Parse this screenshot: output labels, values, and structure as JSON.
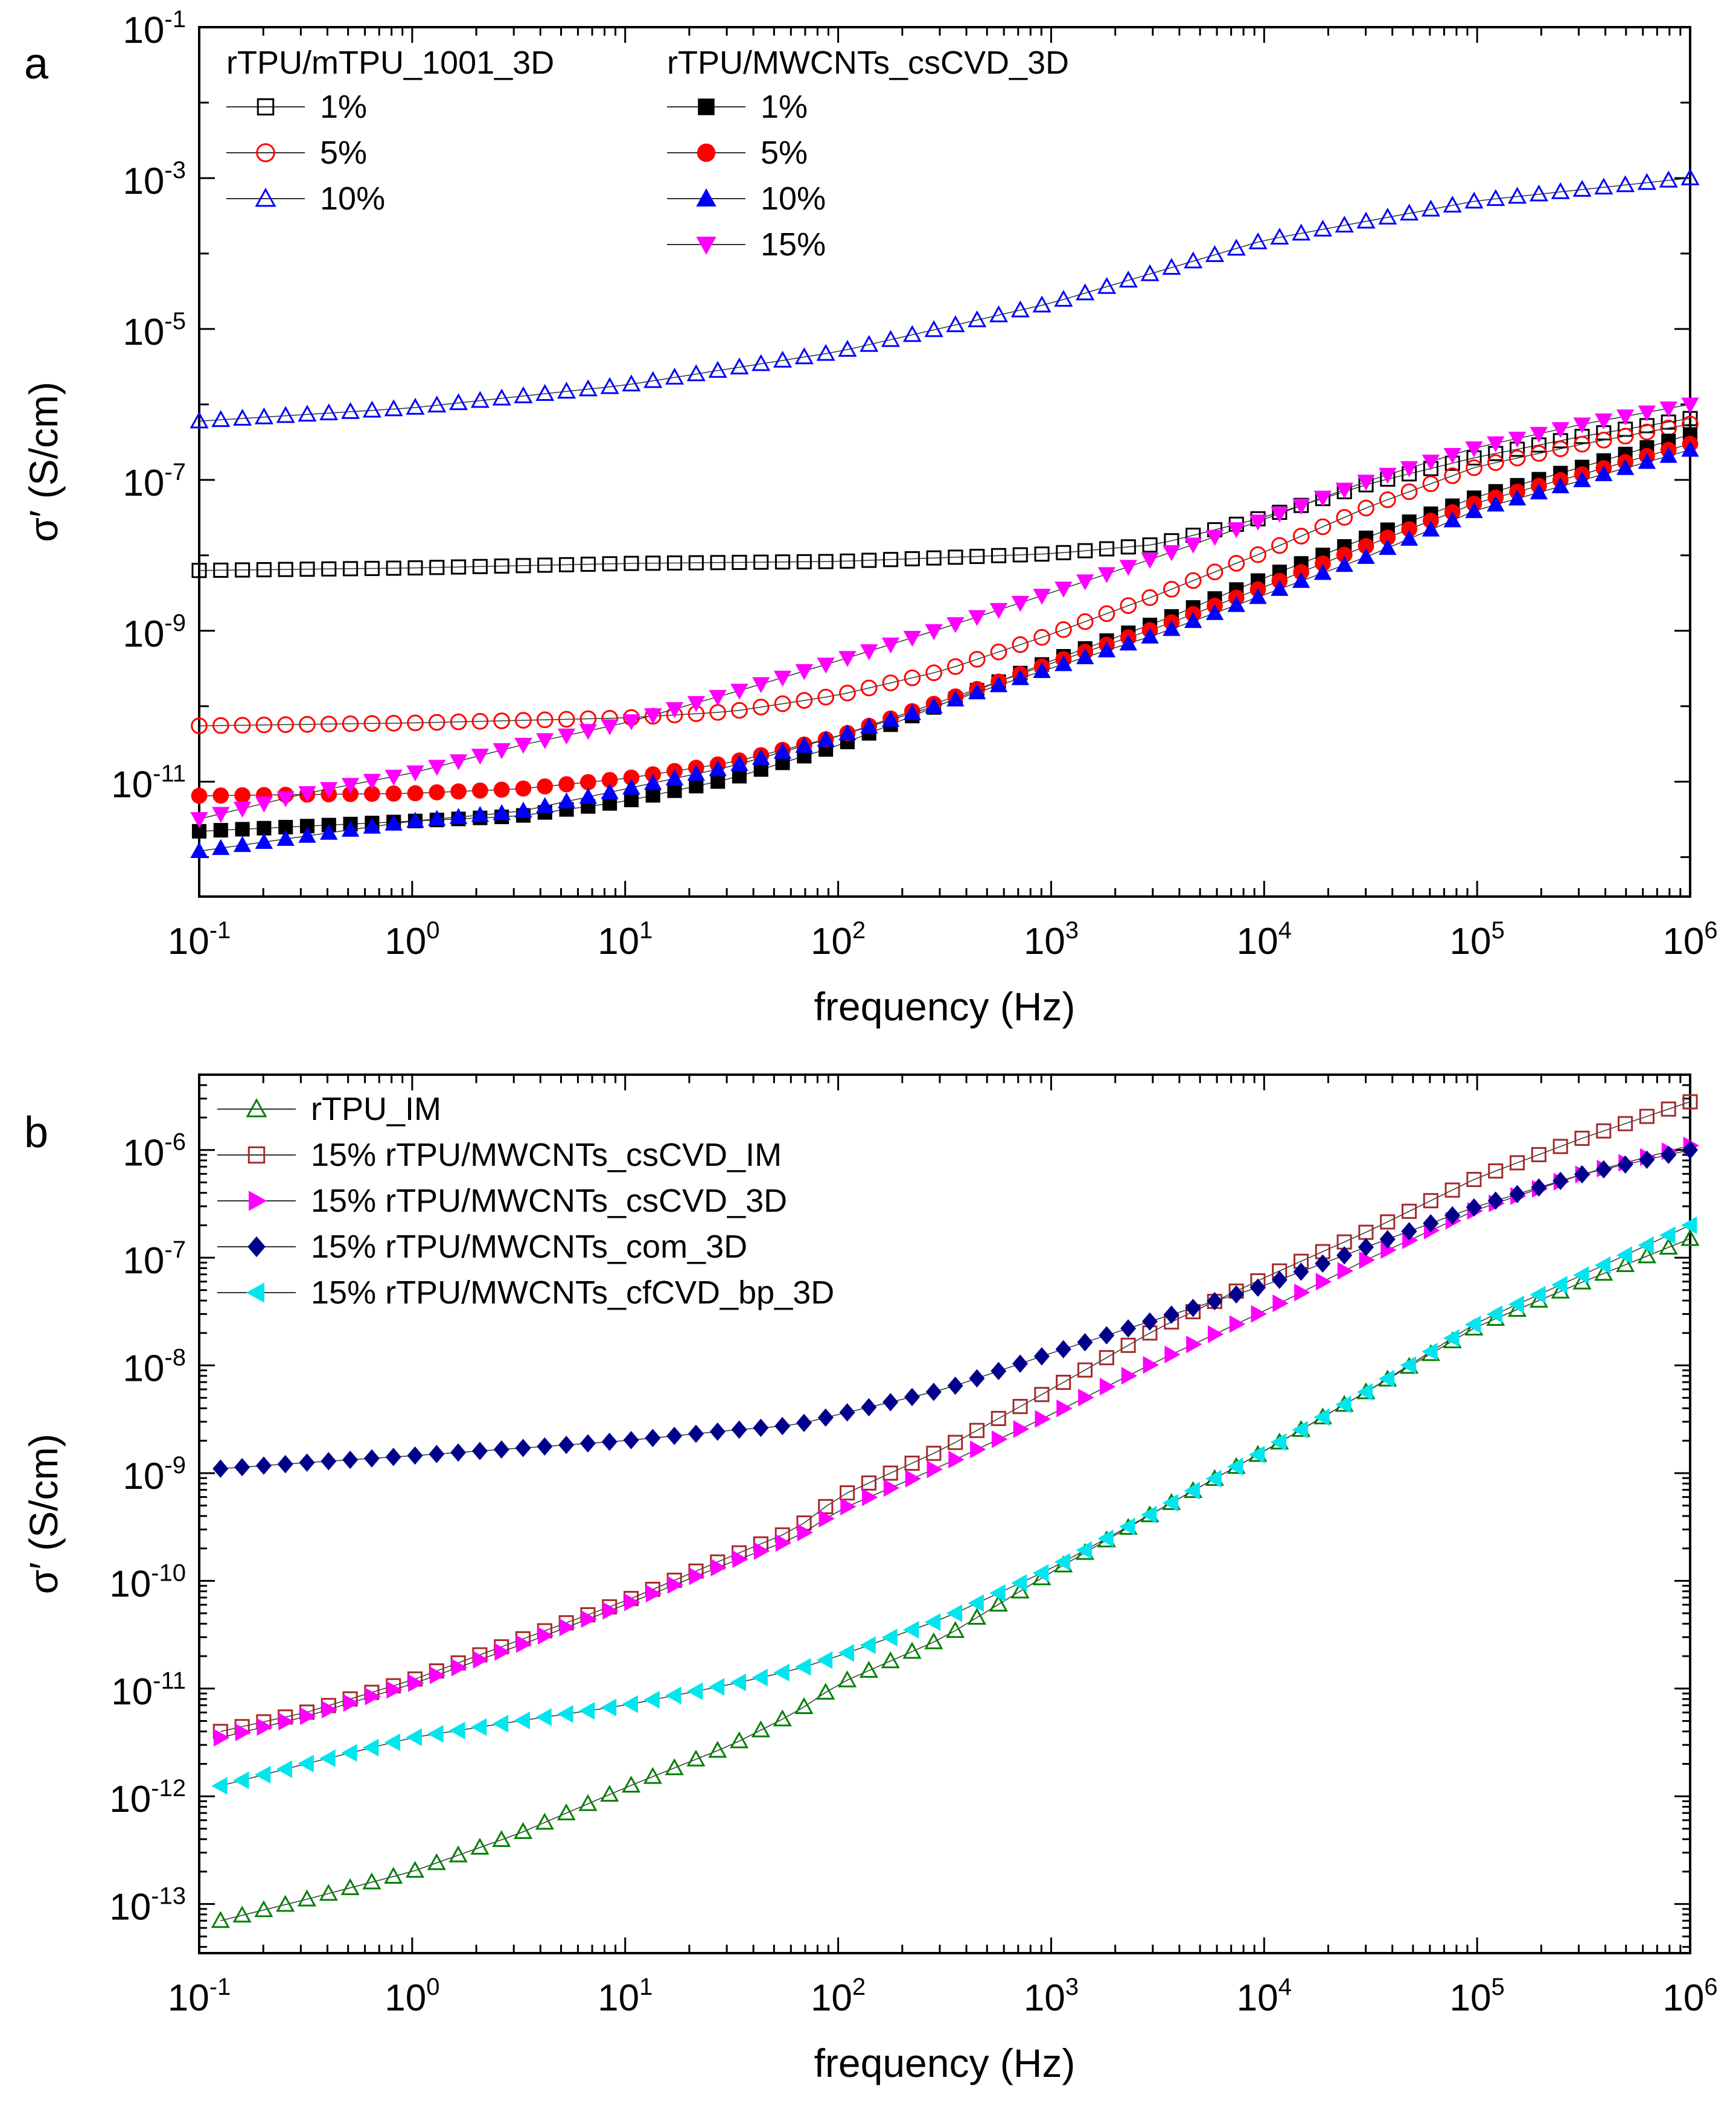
{
  "chart_data": [
    {
      "type": "scatter",
      "panel_label": "a",
      "xlabel": "frequency (Hz)",
      "ylabel": "σ′ (S/cm)",
      "xscale": "log",
      "yscale": "log",
      "xlim": [
        0.1,
        1000000
      ],
      "ylim": [
        3e-13,
        0.1
      ],
      "x_ticks": [
        {
          "base": "10",
          "exp": "-1"
        },
        {
          "base": "10",
          "exp": "0"
        },
        {
          "base": "10",
          "exp": "1"
        },
        {
          "base": "10",
          "exp": "2"
        },
        {
          "base": "10",
          "exp": "3"
        },
        {
          "base": "10",
          "exp": "4"
        },
        {
          "base": "10",
          "exp": "5"
        },
        {
          "base": "10",
          "exp": "6"
        }
      ],
      "y_ticks": [
        {
          "base": "10",
          "exp": "-11"
        },
        {
          "base": "10",
          "exp": "-9"
        },
        {
          "base": "10",
          "exp": "-7"
        },
        {
          "base": "10",
          "exp": "-5"
        },
        {
          "base": "10",
          "exp": "-3"
        },
        {
          "base": "10",
          "exp": "-1"
        }
      ],
      "legend_groups": [
        {
          "title": "rTPU/mTPU_1001_3D",
          "position": "top-left"
        },
        {
          "title": "rTPU/MWCNTs_csCVD_3D",
          "position": "top-center"
        }
      ],
      "series": [
        {
          "name": "1%",
          "group": 0,
          "marker": "square",
          "filled": false,
          "color": "#000000",
          "anchors": [
            [
              -1,
              6.3e-09
            ],
            [
              0,
              6.8e-09
            ],
            [
              1,
              7.8e-09
            ],
            [
              2,
              8.3e-09
            ],
            [
              3,
              1.05e-08
            ],
            [
              3.5,
              1.4e-08
            ],
            [
              4,
              3.2e-08
            ],
            [
              4.5,
              9e-08
            ],
            [
              5,
              2e-07
            ],
            [
              5.5,
              3.8e-07
            ],
            [
              6,
              6.5e-07
            ]
          ]
        },
        {
          "name": "5%",
          "group": 0,
          "marker": "circle",
          "filled": false,
          "color": "#ff0000",
          "anchors": [
            [
              -1,
              5.5e-11
            ],
            [
              0,
              6e-11
            ],
            [
              1,
              7e-11
            ],
            [
              1.5,
              8.5e-11
            ],
            [
              2,
              1.4e-10
            ],
            [
              2.5,
              3e-10
            ],
            [
              3,
              9e-10
            ],
            [
              3.5,
              3e-09
            ],
            [
              4,
              1.1e-08
            ],
            [
              4.5,
              4.5e-08
            ],
            [
              5,
              1.5e-07
            ],
            [
              5.5,
              3e-07
            ],
            [
              6,
              5.5e-07
            ]
          ]
        },
        {
          "name": "10%",
          "group": 0,
          "marker": "triangle-up",
          "filled": false,
          "color": "#0000ff",
          "anchors": [
            [
              -1,
              6e-07
            ],
            [
              0,
              9e-07
            ],
            [
              1,
              1.8e-06
            ],
            [
              2,
              5e-06
            ],
            [
              3,
              2.2e-05
            ],
            [
              4,
              0.00015
            ],
            [
              5,
              0.0005
            ],
            [
              6,
              0.001
            ]
          ]
        },
        {
          "name": "1%",
          "group": 1,
          "marker": "square",
          "filled": true,
          "color": "#000000",
          "anchors": [
            [
              -1,
              2.2e-12
            ],
            [
              0,
              3e-12
            ],
            [
              0.5,
              3.5e-12
            ],
            [
              1,
              5.5e-12
            ],
            [
              1.5,
              1.1e-11
            ],
            [
              2,
              3e-11
            ],
            [
              2.5,
              1.1e-10
            ],
            [
              3,
              4e-10
            ],
            [
              3.5,
              1.3e-09
            ],
            [
              4,
              5e-09
            ],
            [
              4.5,
              1.8e-08
            ],
            [
              5,
              6e-08
            ],
            [
              5.5,
              1.5e-07
            ],
            [
              6,
              4e-07
            ]
          ]
        },
        {
          "name": "5%",
          "group": 1,
          "marker": "circle",
          "filled": true,
          "color": "#ff0000",
          "anchors": [
            [
              -1,
              6.5e-12
            ],
            [
              0,
              7e-12
            ],
            [
              0.5,
              8e-12
            ],
            [
              1,
              1.1e-11
            ],
            [
              1.5,
              1.8e-11
            ],
            [
              2,
              4e-11
            ],
            [
              2.5,
              1.2e-10
            ],
            [
              3,
              3.7e-10
            ],
            [
              3.5,
              1.1e-09
            ],
            [
              4,
              3.8e-09
            ],
            [
              4.5,
              1.4e-08
            ],
            [
              5,
              5e-08
            ],
            [
              5.5,
              1.2e-07
            ],
            [
              6,
              3e-07
            ]
          ]
        },
        {
          "name": "10%",
          "group": 1,
          "marker": "triangle-up",
          "filled": true,
          "color": "#0000ff",
          "anchors": [
            [
              -1,
              1.2e-12
            ],
            [
              0,
              3e-12
            ],
            [
              0.5,
              4e-12
            ],
            [
              1,
              8e-12
            ],
            [
              1.5,
              1.6e-11
            ],
            [
              2,
              4e-11
            ],
            [
              2.5,
              1.1e-10
            ],
            [
              3,
              3.2e-10
            ],
            [
              3.5,
              9e-10
            ],
            [
              4,
              3e-09
            ],
            [
              4.5,
              1e-08
            ],
            [
              5,
              4e-08
            ],
            [
              5.5,
              1e-07
            ],
            [
              6,
              2.5e-07
            ]
          ]
        },
        {
          "name": "15%",
          "group": 1,
          "marker": "triangle-down",
          "filled": true,
          "color": "#ff00ff",
          "anchors": [
            [
              -1,
              3.2e-12
            ],
            [
              -0.5,
              7e-12
            ],
            [
              0,
              1.3e-11
            ],
            [
              0.5,
              3e-11
            ],
            [
              1,
              6e-11
            ],
            [
              1.5,
              1.5e-10
            ],
            [
              2,
              4e-10
            ],
            [
              2.5,
              1.1e-09
            ],
            [
              3,
              3.2e-09
            ],
            [
              3.5,
              9.5e-09
            ],
            [
              4,
              3e-08
            ],
            [
              4.5,
              1e-07
            ],
            [
              5,
              2.7e-07
            ],
            [
              5.5,
              5.5e-07
            ],
            [
              6,
              1e-06
            ]
          ]
        }
      ]
    },
    {
      "type": "scatter",
      "panel_label": "b",
      "xlabel": "frequency (Hz)",
      "ylabel": "σ′ (S/cm)",
      "xscale": "log",
      "yscale": "log",
      "xlim": [
        0.1,
        1000000
      ],
      "ylim": [
        3.5e-14,
        5e-06
      ],
      "x_ticks": [
        {
          "base": "10",
          "exp": "-1"
        },
        {
          "base": "10",
          "exp": "0"
        },
        {
          "base": "10",
          "exp": "1"
        },
        {
          "base": "10",
          "exp": "2"
        },
        {
          "base": "10",
          "exp": "3"
        },
        {
          "base": "10",
          "exp": "4"
        },
        {
          "base": "10",
          "exp": "5"
        },
        {
          "base": "10",
          "exp": "6"
        }
      ],
      "y_ticks": [
        {
          "base": "10",
          "exp": "-13"
        },
        {
          "base": "10",
          "exp": "-12"
        },
        {
          "base": "10",
          "exp": "-11"
        },
        {
          "base": "10",
          "exp": "-10"
        },
        {
          "base": "10",
          "exp": "-9"
        },
        {
          "base": "10",
          "exp": "-8"
        },
        {
          "base": "10",
          "exp": "-7"
        },
        {
          "base": "10",
          "exp": "-6"
        }
      ],
      "legend_position": "top-left",
      "series": [
        {
          "name": "rTPU_IM",
          "marker": "triangle-up",
          "filled": false,
          "color": "#008000",
          "anchors": [
            [
              -0.9,
              7e-14
            ],
            [
              -0.5,
              1.1e-13
            ],
            [
              0,
              2e-13
            ],
            [
              0.5,
              4.5e-13
            ],
            [
              1,
              1.2e-12
            ],
            [
              1.5,
              3e-12
            ],
            [
              1.8,
              6e-12
            ],
            [
              2,
              1.1e-11
            ],
            [
              2.5,
              3e-11
            ],
            [
              3,
              1.2e-10
            ],
            [
              3.5,
              4.5e-10
            ],
            [
              4,
              1.6e-09
            ],
            [
              4.5,
              6e-09
            ],
            [
              5,
              2.3e-08
            ],
            [
              5.5,
              6e-08
            ],
            [
              6,
              1.5e-07
            ]
          ]
        },
        {
          "name": "15% rTPU/MWCNTs_csCVD_IM",
          "marker": "square",
          "filled": false,
          "color": "#a52a2a",
          "anchors": [
            [
              -0.9,
              4e-12
            ],
            [
              -0.5,
              6e-12
            ],
            [
              0,
              1.2e-11
            ],
            [
              0.5,
              2.8e-11
            ],
            [
              1,
              6.5e-11
            ],
            [
              1.5,
              1.7e-10
            ],
            [
              1.8,
              3e-10
            ],
            [
              2,
              6e-10
            ],
            [
              2.5,
              1.7e-09
            ],
            [
              3,
              6e-09
            ],
            [
              3.5,
              2.2e-08
            ],
            [
              4,
              6.5e-08
            ],
            [
              4.5,
              1.8e-07
            ],
            [
              5,
              5.5e-07
            ],
            [
              5.5,
              1.3e-06
            ],
            [
              6,
              2.8e-06
            ]
          ]
        },
        {
          "name": "15% rTPU/MWCNTs_csCVD_3D",
          "marker": "triangle-right",
          "filled": true,
          "color": "#ff00ff",
          "anchors": [
            [
              -0.9,
              3.5e-12
            ],
            [
              -0.5,
              5.5e-12
            ],
            [
              0,
              1.1e-11
            ],
            [
              0.5,
              2.5e-11
            ],
            [
              1,
              6e-11
            ],
            [
              1.5,
              1.5e-10
            ],
            [
              1.8,
              2.5e-10
            ],
            [
              2,
              4.5e-10
            ],
            [
              2.5,
              1.2e-09
            ],
            [
              3,
              3.5e-09
            ],
            [
              3.5,
              1.1e-08
            ],
            [
              4,
              3.2e-08
            ],
            [
              4.5,
              1e-07
            ],
            [
              5,
              2.8e-07
            ],
            [
              5.5,
              6e-07
            ],
            [
              6,
              1.1e-06
            ]
          ]
        },
        {
          "name": "15% rTPU/MWCNTs_com_3D",
          "marker": "diamond",
          "filled": true,
          "color": "#00008b",
          "anchors": [
            [
              -0.9,
              1.1e-09
            ],
            [
              -0.5,
              1.25e-09
            ],
            [
              0,
              1.45e-09
            ],
            [
              0.5,
              1.7e-09
            ],
            [
              1,
              2e-09
            ],
            [
              1.5,
              2.5e-09
            ],
            [
              1.8,
              2.8e-09
            ],
            [
              2,
              3.5e-09
            ],
            [
              2.5,
              6e-09
            ],
            [
              3,
              1.3e-08
            ],
            [
              3.5,
              2.7e-08
            ],
            [
              4,
              5.5e-08
            ],
            [
              4.5,
              1.3e-07
            ],
            [
              5,
              3e-07
            ],
            [
              5.5,
              6e-07
            ],
            [
              6,
              1e-06
            ]
          ]
        },
        {
          "name": "15% rTPU/MWCNTs_cfCVD_bp_3D",
          "marker": "triangle-left",
          "filled": true,
          "color": "#00e5ee",
          "anchors": [
            [
              -0.9,
              1.25e-12
            ],
            [
              -0.5,
              2e-12
            ],
            [
              0,
              3.5e-12
            ],
            [
              0.5,
              5e-12
            ],
            [
              1,
              7e-12
            ],
            [
              1.5,
              1.1e-11
            ],
            [
              1.8,
              1.5e-11
            ],
            [
              2,
              2e-11
            ],
            [
              2.5,
              4.5e-11
            ],
            [
              3,
              1.3e-10
            ],
            [
              3.5,
              4.5e-10
            ],
            [
              4,
              1.6e-09
            ],
            [
              4.5,
              6e-09
            ],
            [
              5,
              2.5e-08
            ],
            [
              5.5,
              7e-08
            ],
            [
              6,
              2e-07
            ]
          ]
        }
      ]
    }
  ]
}
